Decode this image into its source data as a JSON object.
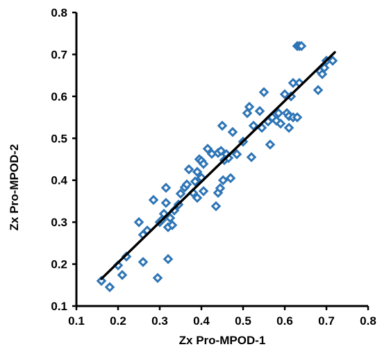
{
  "chart_data": {
    "type": "scatter",
    "title": "",
    "xlabel": "Zx Pro-MPOD-1",
    "ylabel": "Zx Pro-MPOD-2",
    "xlim": [
      0.1,
      0.8
    ],
    "ylim": [
      0.1,
      0.8
    ],
    "xticks": [
      "0.1",
      "0.2",
      "0.3",
      "0.4",
      "0.5",
      "0.6",
      "0.7",
      "0.8"
    ],
    "yticks": [
      "0.1",
      "0.2",
      "0.3",
      "0.4",
      "0.5",
      "0.6",
      "0.7",
      "0.8"
    ],
    "grid": false,
    "legend": "none",
    "marker_color": "#2e75b6",
    "line_color": "#000000",
    "series": [
      {
        "marker": "diamond",
        "points": [
          [
            0.16,
            0.16
          ],
          [
            0.18,
            0.145
          ],
          [
            0.2,
            0.197
          ],
          [
            0.21,
            0.174
          ],
          [
            0.22,
            0.218
          ],
          [
            0.25,
            0.3
          ],
          [
            0.26,
            0.205
          ],
          [
            0.26,
            0.27
          ],
          [
            0.27,
            0.28
          ],
          [
            0.285,
            0.353
          ],
          [
            0.295,
            0.167
          ],
          [
            0.3,
            0.3
          ],
          [
            0.305,
            0.305
          ],
          [
            0.31,
            0.32
          ],
          [
            0.315,
            0.382
          ],
          [
            0.315,
            0.346
          ],
          [
            0.32,
            0.212
          ],
          [
            0.32,
            0.288
          ],
          [
            0.325,
            0.31
          ],
          [
            0.33,
            0.293
          ],
          [
            0.335,
            0.328
          ],
          [
            0.345,
            0.342
          ],
          [
            0.35,
            0.368
          ],
          [
            0.36,
            0.383
          ],
          [
            0.365,
            0.39
          ],
          [
            0.37,
            0.426
          ],
          [
            0.38,
            0.37
          ],
          [
            0.385,
            0.397
          ],
          [
            0.39,
            0.358
          ],
          [
            0.39,
            0.42
          ],
          [
            0.395,
            0.45
          ],
          [
            0.4,
            0.406
          ],
          [
            0.4,
            0.446
          ],
          [
            0.405,
            0.439
          ],
          [
            0.405,
            0.374
          ],
          [
            0.415,
            0.475
          ],
          [
            0.425,
            0.463
          ],
          [
            0.435,
            0.338
          ],
          [
            0.44,
            0.465
          ],
          [
            0.44,
            0.37
          ],
          [
            0.445,
            0.381
          ],
          [
            0.447,
            0.47
          ],
          [
            0.45,
            0.53
          ],
          [
            0.452,
            0.4
          ],
          [
            0.455,
            0.448
          ],
          [
            0.46,
            0.462
          ],
          [
            0.465,
            0.453
          ],
          [
            0.47,
            0.405
          ],
          [
            0.475,
            0.515
          ],
          [
            0.485,
            0.462
          ],
          [
            0.5,
            0.492
          ],
          [
            0.51,
            0.56
          ],
          [
            0.515,
            0.575
          ],
          [
            0.52,
            0.455
          ],
          [
            0.525,
            0.53
          ],
          [
            0.54,
            0.565
          ],
          [
            0.545,
            0.525
          ],
          [
            0.55,
            0.61
          ],
          [
            0.56,
            0.54
          ],
          [
            0.565,
            0.485
          ],
          [
            0.57,
            0.55
          ],
          [
            0.58,
            0.542
          ],
          [
            0.585,
            0.56
          ],
          [
            0.59,
            0.535
          ],
          [
            0.6,
            0.605
          ],
          [
            0.605,
            0.56
          ],
          [
            0.61,
            0.525
          ],
          [
            0.61,
            0.553
          ],
          [
            0.615,
            0.6
          ],
          [
            0.62,
            0.632
          ],
          [
            0.62,
            0.55
          ],
          [
            0.63,
            0.55
          ],
          [
            0.635,
            0.632
          ],
          [
            0.63,
            0.72
          ],
          [
            0.635,
            0.72
          ],
          [
            0.64,
            0.72
          ],
          [
            0.68,
            0.615
          ],
          [
            0.685,
            0.66
          ],
          [
            0.69,
            0.653
          ],
          [
            0.695,
            0.668
          ],
          [
            0.7,
            0.685
          ],
          [
            0.715,
            0.685
          ]
        ]
      }
    ],
    "trendline": {
      "x": [
        0.16,
        0.72
      ],
      "y": [
        0.165,
        0.705
      ]
    }
  }
}
